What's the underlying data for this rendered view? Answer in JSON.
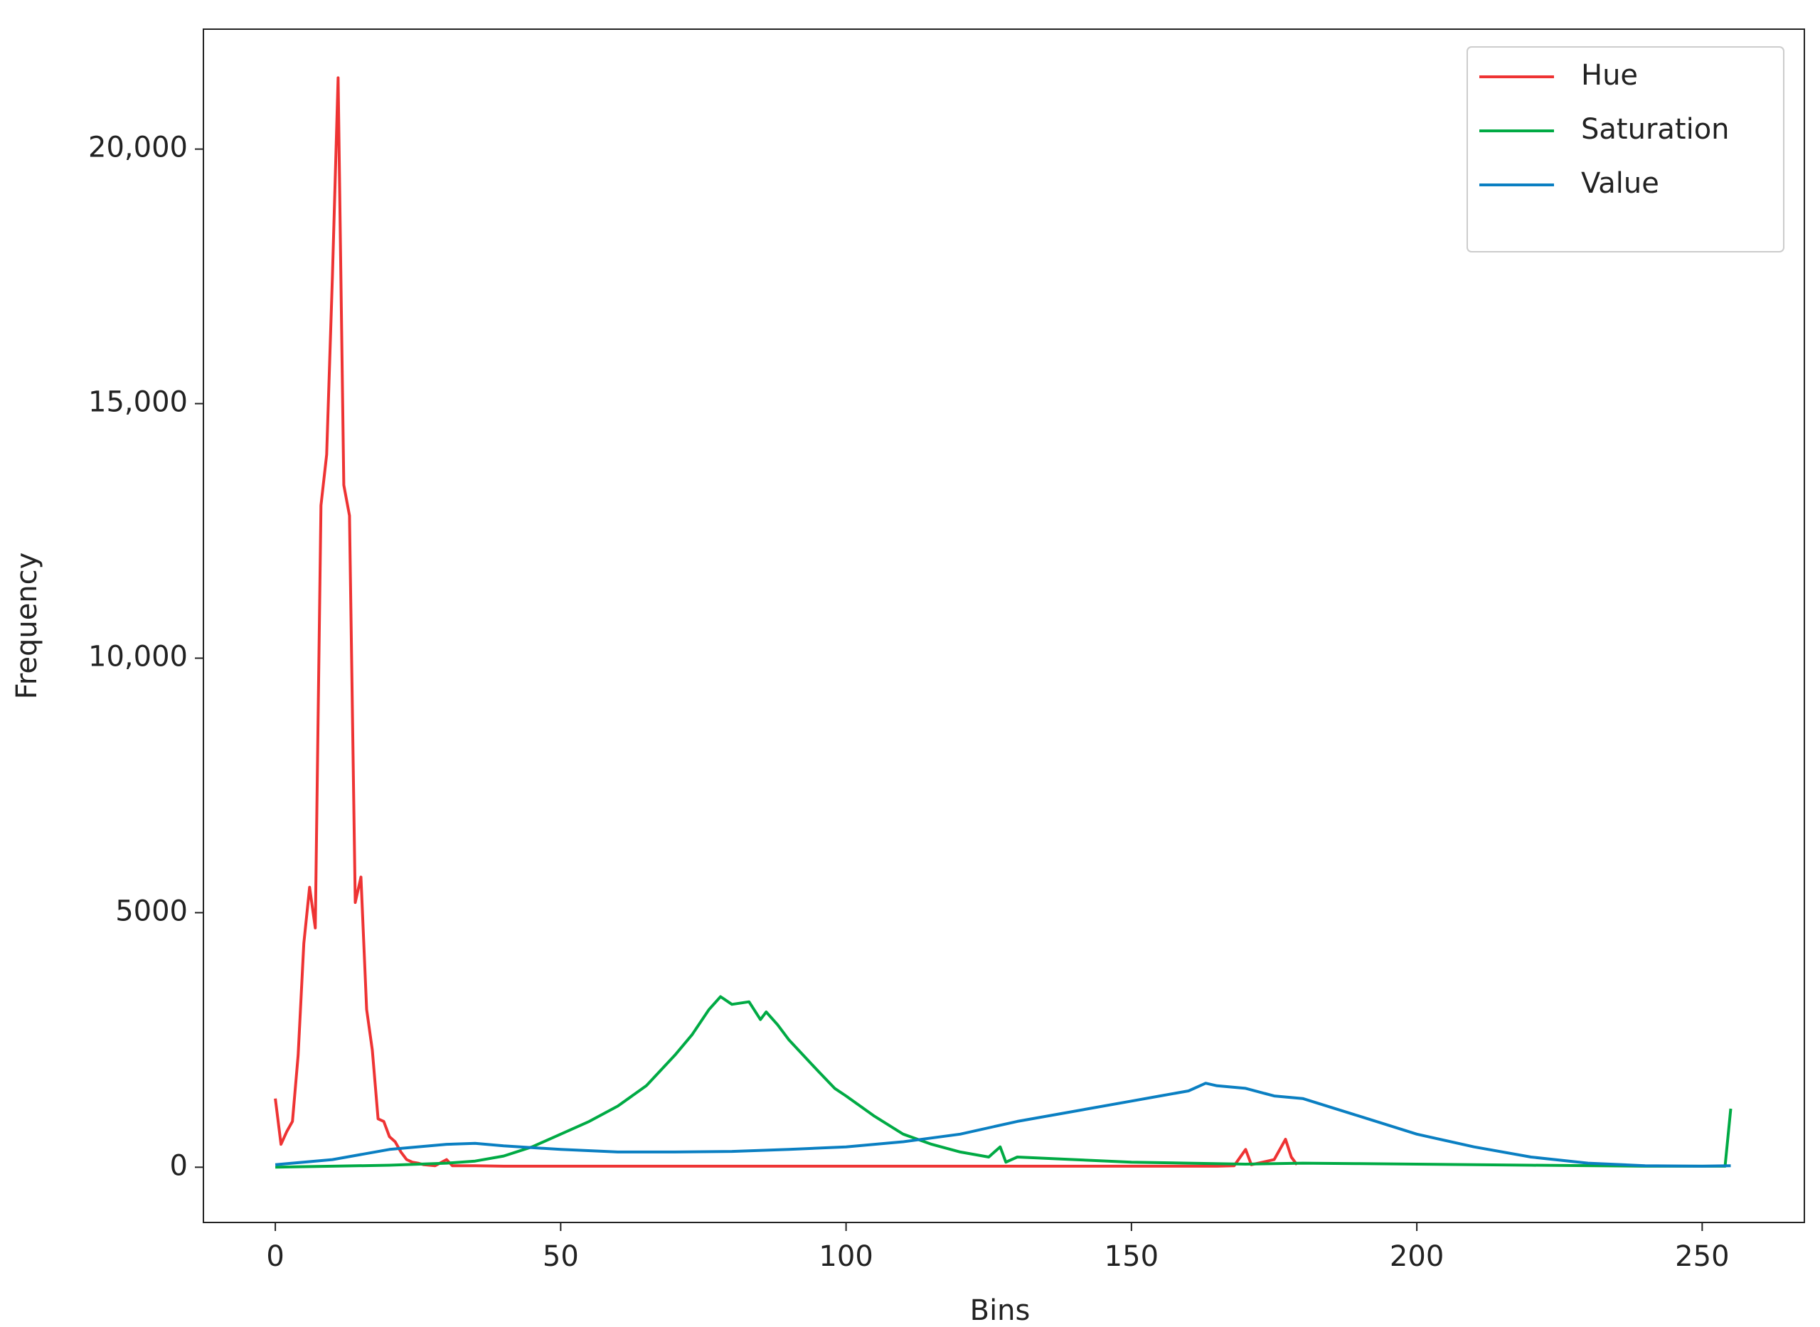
{
  "chart_data": {
    "type": "line",
    "xlabel": "Bins",
    "ylabel": "Frequency",
    "xlim": [
      -12.6,
      267.9
    ],
    "ylim": [
      -1085,
      22356
    ],
    "xticks": [
      0,
      50,
      100,
      150,
      200,
      250
    ],
    "yticks": [
      0,
      5000,
      {
        "value": 10000,
        "label": "10,000"
      },
      {
        "value": 15000,
        "label": "15,000"
      },
      {
        "value": 20000,
        "label": "20,000"
      }
    ],
    "grid": false,
    "legend": "upper right",
    "series": [
      {
        "name": "Hue",
        "color": "#ee3333",
        "x": [
          0,
          1,
          2,
          3,
          4,
          5,
          6,
          7,
          8,
          9,
          10,
          11,
          12,
          13,
          14,
          15,
          16,
          17,
          18,
          19,
          20,
          21,
          22,
          23,
          24,
          25,
          26,
          28,
          30,
          31,
          35,
          40,
          60,
          80,
          100,
          120,
          140,
          160,
          165,
          168,
          170,
          171,
          175,
          177,
          178,
          179
        ],
        "values": [
          1350,
          450,
          700,
          900,
          2200,
          4400,
          5500,
          4700,
          13000,
          14000,
          17500,
          21400,
          13400,
          12800,
          5200,
          5700,
          3100,
          2300,
          950,
          900,
          600,
          500,
          300,
          150,
          100,
          80,
          50,
          30,
          150,
          30,
          30,
          20,
          20,
          20,
          20,
          20,
          20,
          20,
          20,
          30,
          350,
          50,
          150,
          550,
          200,
          50
        ]
      },
      {
        "name": "Saturation",
        "color": "#00aa44",
        "x": [
          0,
          10,
          20,
          30,
          35,
          40,
          45,
          50,
          55,
          60,
          65,
          70,
          73,
          76,
          78,
          80,
          83,
          85,
          86,
          88,
          90,
          95,
          98,
          100,
          105,
          110,
          115,
          120,
          125,
          127,
          128,
          130,
          140,
          150,
          160,
          170,
          180,
          190,
          200,
          220,
          240,
          254,
          255
        ],
        "values": [
          0,
          20,
          40,
          80,
          120,
          220,
          400,
          650,
          900,
          1200,
          1600,
          2200,
          2600,
          3100,
          3350,
          3200,
          3250,
          2900,
          3050,
          2800,
          2500,
          1900,
          1550,
          1400,
          1000,
          650,
          450,
          300,
          200,
          400,
          100,
          200,
          150,
          100,
          80,
          60,
          80,
          70,
          60,
          40,
          20,
          20,
          1150
        ]
      },
      {
        "name": "Value",
        "color": "#0a7fc2",
        "x": [
          0,
          10,
          20,
          30,
          35,
          40,
          50,
          60,
          70,
          80,
          90,
          100,
          110,
          120,
          130,
          140,
          150,
          155,
          160,
          163,
          165,
          170,
          175,
          180,
          190,
          200,
          210,
          220,
          230,
          240,
          250,
          255
        ],
        "values": [
          50,
          150,
          350,
          450,
          470,
          420,
          350,
          300,
          300,
          310,
          350,
          400,
          500,
          650,
          900,
          1100,
          1300,
          1400,
          1500,
          1650,
          1600,
          1550,
          1400,
          1350,
          1000,
          650,
          400,
          200,
          80,
          30,
          20,
          30
        ]
      }
    ]
  }
}
